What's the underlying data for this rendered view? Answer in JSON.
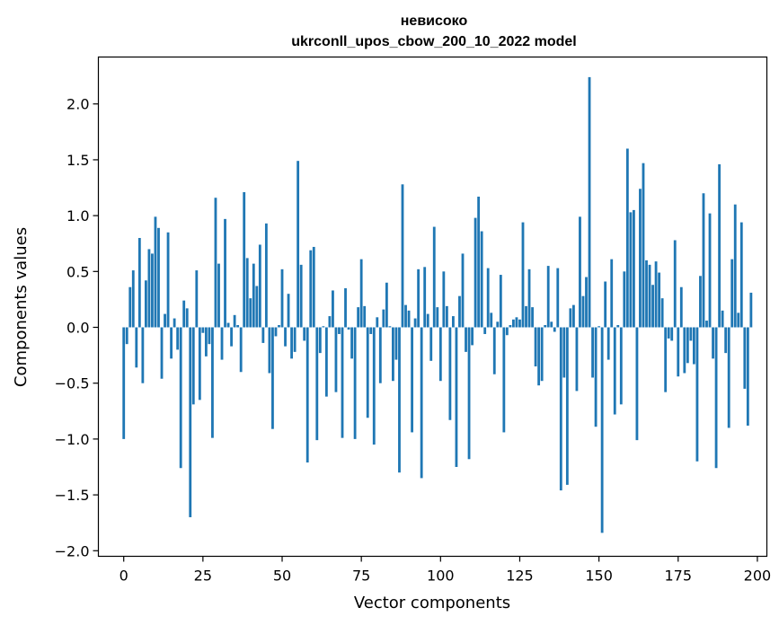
{
  "chart_data": {
    "type": "bar",
    "title": "невисоко",
    "subtitle": "ukrconll_upos_cbow_200_10_2022 model",
    "xlabel": "Vector components",
    "ylabel": "Components values",
    "xlim": [
      -8,
      203
    ],
    "ylim": [
      -2.05,
      2.42
    ],
    "xticks": [
      0,
      25,
      50,
      75,
      100,
      125,
      150,
      175,
      200
    ],
    "yticks": [
      -2.0,
      -1.5,
      -1.0,
      -0.5,
      0.0,
      0.5,
      1.0,
      1.5,
      2.0
    ],
    "ytick_labels": [
      "−2.0",
      "−1.5",
      "−1.0",
      "−0.5",
      "0.0",
      "0.5",
      "1.0",
      "1.5",
      "2.0"
    ],
    "bar_color": "#1f77b4",
    "grid": false,
    "values": [
      -1.0,
      -0.15,
      0.36,
      0.51,
      -0.36,
      0.8,
      -0.5,
      0.42,
      0.7,
      0.66,
      0.99,
      0.89,
      -0.46,
      0.12,
      0.85,
      -0.28,
      0.08,
      -0.2,
      -1.26,
      0.24,
      0.17,
      -1.7,
      -0.69,
      0.51,
      -0.65,
      -0.05,
      -0.26,
      -0.15,
      -0.99,
      1.16,
      0.57,
      -0.29,
      0.97,
      0.04,
      -0.17,
      0.11,
      0.02,
      -0.4,
      1.21,
      0.62,
      0.26,
      0.57,
      0.37,
      0.74,
      -0.14,
      0.93,
      -0.41,
      -0.91,
      -0.08,
      0.02,
      0.52,
      -0.17,
      0.3,
      -0.28,
      -0.22,
      1.49,
      0.56,
      -0.12,
      -1.21,
      0.69,
      0.72,
      -1.01,
      -0.23,
      0.01,
      -0.62,
      0.1,
      0.33,
      -0.58,
      -0.06,
      -0.99,
      0.35,
      -0.02,
      -0.28,
      -1.0,
      0.18,
      0.61,
      0.19,
      -0.81,
      -0.06,
      -1.05,
      0.09,
      -0.5,
      0.16,
      0.4,
      0.01,
      -0.48,
      -0.29,
      -1.3,
      1.28,
      0.2,
      0.15,
      -0.94,
      0.08,
      0.52,
      -1.35,
      0.54,
      0.12,
      -0.3,
      0.9,
      0.18,
      -0.48,
      0.5,
      0.19,
      -0.83,
      0.1,
      -1.25,
      0.28,
      0.66,
      -0.22,
      -1.18,
      -0.16,
      0.98,
      1.17,
      0.86,
      -0.06,
      0.53,
      0.13,
      -0.42,
      0.05,
      0.47,
      -0.94,
      -0.07,
      0.02,
      0.07,
      0.09,
      0.07,
      0.94,
      0.19,
      0.52,
      0.18,
      -0.35,
      -0.52,
      -0.48,
      0.02,
      0.55,
      0.05,
      -0.04,
      0.53,
      -1.46,
      -0.45,
      -1.41,
      0.17,
      0.2,
      -0.57,
      0.99,
      0.28,
      0.45,
      2.24,
      -0.45,
      -0.89,
      0.01,
      -1.84,
      0.41,
      -0.29,
      0.61,
      -0.78,
      0.02,
      -0.69,
      0.5,
      1.6,
      1.03,
      1.05,
      -1.01,
      1.24,
      1.47,
      0.6,
      0.56,
      0.38,
      0.59,
      0.49,
      0.26,
      -0.58,
      -0.1,
      -0.12,
      0.78,
      -0.44,
      0.36,
      -0.41,
      -0.32,
      -0.12,
      -0.33,
      -1.2,
      0.46,
      1.2,
      0.06,
      1.02,
      -0.28,
      -1.26,
      1.46,
      0.15,
      -0.23,
      -0.9,
      0.61,
      1.1,
      0.13,
      0.94,
      -0.55,
      -0.88,
      0.31
    ]
  }
}
